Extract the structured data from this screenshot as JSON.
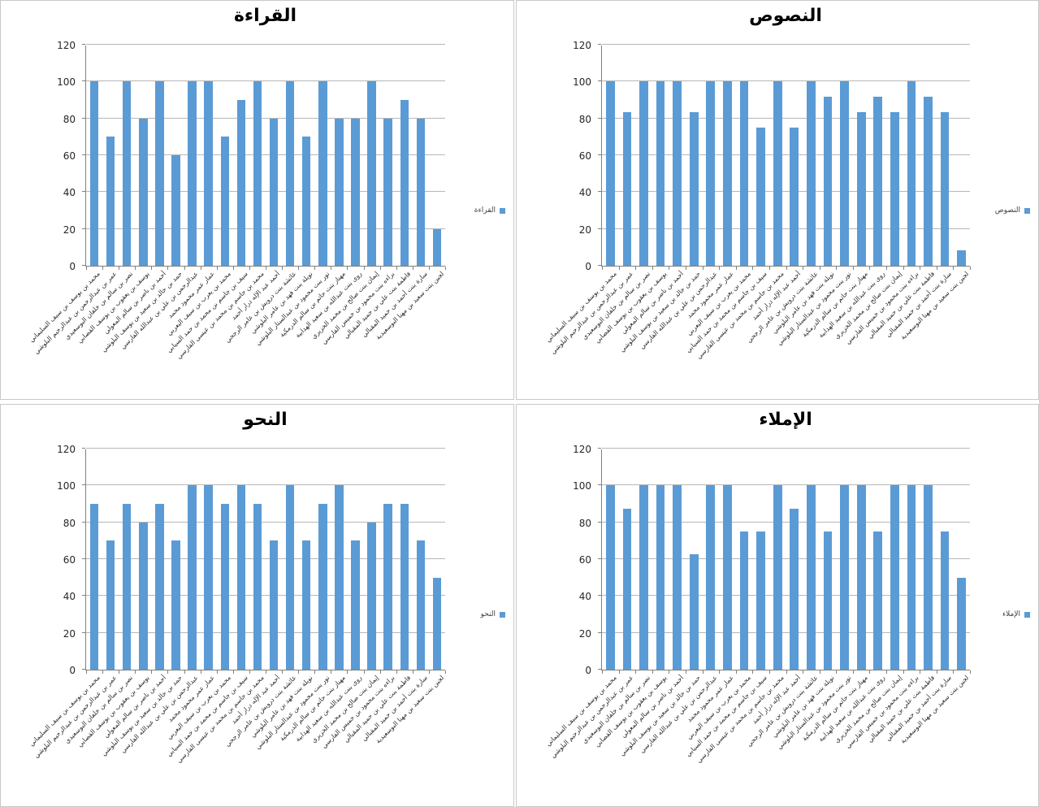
{
  "colors": {
    "bar": "#5b9bd5",
    "gridline": "#b7b7b7",
    "axis": "#808080",
    "panel_border": "#c9c9c9",
    "background": "#ffffff"
  },
  "chart_data": [
    {
      "type": "bar",
      "position": "top-left",
      "title": "القراءة",
      "legend": "القراءة",
      "ylim": [
        0,
        120
      ],
      "yticks": [
        0,
        20,
        40,
        60,
        80,
        100,
        120
      ],
      "grid": true,
      "legend_position": "right",
      "categories": [
        "محمد بن يوسف بن سيف السليماني",
        "عمر بن عبدالرحمن بن عبدالرحيم البلوشي",
        "نصر بن سالم بن خلفان البوسعيدي",
        "يوسف بن يعقوب بن يوسف القصابي",
        "أحمد بن ناصر بن سالم المعولي",
        "حمد بن خالد بن سعيد بن يوسف البلوشي",
        "عبدالرحمن بن علي بن عبدالله الفارسي",
        "عمار عمر محمود محمد",
        "محمد بن يعرب بن سيف اليعربي",
        "سيف بن جاسم بن محمد بن حمد السيابي",
        "محمد بن جاسم بن محمد بن عيسى الفارسي",
        "أحمد عبد الإله درار أحمد",
        "عائشة بنت درويش بن عامر الرجحي",
        "نويلة بنت فهد بن عامر البلوشي",
        "نور بنت محمود بن عبدالستار البلوشي",
        "مهناز بنت حاتم بن سالم الدرمكية",
        "روى بنت عبدالله بن سعيد الهدابية",
        "إيمان بنت صالح بن محمد الخزيري",
        "براءه بنت محمود بن خميس الفارسي",
        "فاطمة بنت علي بن حميد المقبالي",
        "سارة بنت أحمد بن حميد المقبالي",
        "لجين بنت سعيد بن مهنا البوسعيدية"
      ],
      "values": [
        100,
        70,
        100,
        80,
        100,
        60,
        100,
        100,
        70,
        90,
        100,
        80,
        100,
        70,
        100,
        80,
        80,
        100,
        80,
        90,
        80,
        20
      ]
    },
    {
      "type": "bar",
      "position": "top-right",
      "title": "النصوص",
      "legend": "النصوص",
      "ylim": [
        0,
        120
      ],
      "yticks": [
        0,
        20,
        40,
        60,
        80,
        100,
        120
      ],
      "grid": true,
      "legend_position": "right",
      "categories": [
        "محمد بن يوسف بن سيف السليماني",
        "عمر بن عبدالرحمن بن عبدالرحيم البلوشي",
        "نصر بن سالم بن خلفان البوسعيدي",
        "يوسف بن يعقوب بن يوسف القصابي",
        "أحمد بن ناصر بن سالم المعولي",
        "حمد بن خالد بن سعيد بن يوسف البلوشي",
        "عبدالرحمن بن علي بن عبدالله الفارسي",
        "عمار عمر محمود محمد",
        "محمد بن يعرب بن سيف اليعربي",
        "سيف بن جاسم بن محمد بن حمد السيابي",
        "محمد بن جاسم بن محمد بن عيسى الفارسي",
        "أحمد عبد الإله درار أحمد",
        "عائشة بنت درويش بن عامر الرجحي",
        "نويلة بنت فهد بن عامر البلوشي",
        "نور بنت محمود بن عبدالستار البلوشي",
        "مهناز بنت حاتم بن سالم الدرمكية",
        "روى بنت عبدالله بن سعيد الهدابية",
        "إيمان بنت صالح بن محمد الخزيري",
        "براءه بنت محمود بن خميس الفارسي",
        "فاطمة بنت علي بن حميد المقبالي",
        "سارة بنت أحمد بن حميد المقبالي",
        "لجين بنت سعيد بن مهنا البوسعيدية"
      ],
      "values": [
        100,
        83.3,
        100,
        100,
        100,
        83.3,
        100,
        100,
        100,
        75,
        100,
        75,
        100,
        91.7,
        100,
        83.3,
        91.7,
        83.3,
        100,
        91.7,
        83.3,
        8.3
      ]
    },
    {
      "type": "bar",
      "position": "bottom-left",
      "title": "النحو",
      "legend": "النحو",
      "ylim": [
        0,
        120
      ],
      "yticks": [
        0,
        20,
        40,
        60,
        80,
        100,
        120
      ],
      "grid": true,
      "legend_position": "right",
      "categories": [
        "محمد بن يوسف بن سيف السليماني",
        "عمر بن عبدالرحمن بن عبدالرحيم البلوشي",
        "نصر بن سالم بن خلفان البوسعيدي",
        "يوسف بن يعقوب بن يوسف القصابي",
        "أحمد بن ناصر بن سالم المعولي",
        "حمد بن خالد بن سعيد بن يوسف البلوشي",
        "عبدالرحمن بن علي بن عبدالله الفارسي",
        "عمار عمر محمود محمد",
        "محمد بن يعرب بن سيف اليعربي",
        "سيف بن جاسم بن محمد بن حمد السيابي",
        "محمد بن جاسم بن محمد بن عيسى الفارسي",
        "أحمد عبد الإله درار أحمد",
        "عائشة بنت درويش بن عامر الرجحي",
        "نويلة بنت فهد بن عامر البلوشي",
        "نور بنت محمود بن عبدالستار البلوشي",
        "مهناز بنت حاتم بن سالم الدرمكية",
        "روى بنت عبدالله بن سعيد الهدابية",
        "إيمان بنت صالح بن محمد الخزيري",
        "براءه بنت محمود بن خميس الفارسي",
        "فاطمة بنت علي بن حميد المقبالي",
        "سارة بنت أحمد بن حميد المقبالي",
        "لجين بنت سعيد بن مهنا البوسعيدية"
      ],
      "values": [
        90,
        70,
        90,
        80,
        90,
        70,
        100,
        100,
        90,
        100,
        90,
        70,
        100,
        70,
        90,
        100,
        70,
        80,
        90,
        90,
        70,
        50
      ]
    },
    {
      "type": "bar",
      "position": "bottom-right",
      "title": "الإملاء",
      "legend": "الإملاء",
      "ylim": [
        0,
        120
      ],
      "yticks": [
        0,
        20,
        40,
        60,
        80,
        100,
        120
      ],
      "grid": true,
      "legend_position": "right",
      "categories": [
        "محمد بن يوسف بن سيف السليماني",
        "عمر بن عبدالرحمن بن عبدالرحيم البلوشي",
        "نصر بن سالم بن خلفان البوسعيدي",
        "يوسف بن يعقوب بن يوسف القصابي",
        "أحمد بن ناصر بن سالم المعولي",
        "حمد بن خالد بن سعيد بن يوسف البلوشي",
        "عبدالرحمن بن علي بن عبدالله الفارسي",
        "عمار عمر محمود محمد",
        "محمد بن يعرب بن سيف اليعربي",
        "سيف بن جاسم بن محمد بن حمد السيابي",
        "محمد بن جاسم بن محمد بن عيسى الفارسي",
        "أحمد عبد الإله درار أحمد",
        "عائشة بنت درويش بن عامر الرجحي",
        "نويلة بنت فهد بن عامر البلوشي",
        "نور بنت محمود بن عبدالستار البلوشي",
        "مهناز بنت حاتم بن سالم الدرمكية",
        "روى بنت عبدالله بن سعيد الهدابية",
        "إيمان بنت صالح بن محمد الخزيري",
        "براءه بنت محمود بن خميس الفارسي",
        "فاطمة بنت علي بن حميد المقبالي",
        "سارة بنت أحمد بن حميد المقبالي",
        "لجين بنت سعيد بن مهنا البوسعيدية"
      ],
      "values": [
        100,
        87.5,
        100,
        100,
        100,
        62.5,
        100,
        100,
        75,
        75,
        100,
        87.5,
        100,
        75,
        100,
        100,
        75,
        100,
        100,
        100,
        75,
        50
      ]
    }
  ]
}
